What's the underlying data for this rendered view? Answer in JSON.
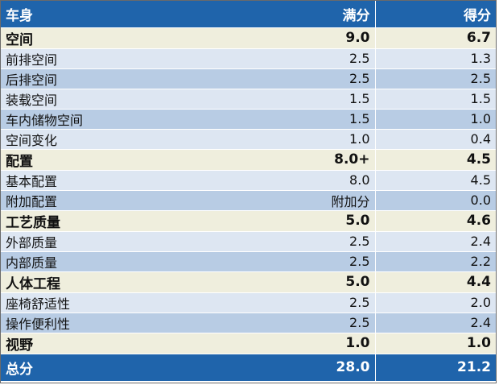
{
  "colors": {
    "header_bg": "#1f64ab",
    "footer_bg": "#1f64ab",
    "section_bg": "#efeedd",
    "row_light": "#dde6f2",
    "row_dark": "#b8cce4"
  },
  "header": {
    "col1": "车身",
    "col2": "满分",
    "col3": "得分"
  },
  "rows": [
    {
      "name": "空间",
      "full": "9.0",
      "score": "6.7",
      "kind": "section"
    },
    {
      "name": "前排空间",
      "full": "2.5",
      "score": "1.3",
      "kind": "light"
    },
    {
      "name": "后排空间",
      "full": "2.5",
      "score": "2.5",
      "kind": "dark"
    },
    {
      "name": "装载空间",
      "full": "1.5",
      "score": "1.5",
      "kind": "light"
    },
    {
      "name": "车内储物空间",
      "full": "1.5",
      "score": "1.0",
      "kind": "dark"
    },
    {
      "name": "空间变化",
      "full": "1.0",
      "score": "0.4",
      "kind": "light"
    },
    {
      "name": "配置",
      "full": "8.0+",
      "score": "4.5",
      "kind": "section"
    },
    {
      "name": "基本配置",
      "full": "8.0",
      "score": "4.5",
      "kind": "light"
    },
    {
      "name": "附加配置",
      "full": "附加分",
      "score": "0.0",
      "kind": "dark"
    },
    {
      "name": "工艺质量",
      "full": "5.0",
      "score": "4.6",
      "kind": "section"
    },
    {
      "name": "外部质量",
      "full": "2.5",
      "score": "2.4",
      "kind": "light"
    },
    {
      "name": "内部质量",
      "full": "2.5",
      "score": "2.2",
      "kind": "dark"
    },
    {
      "name": "人体工程",
      "full": "5.0",
      "score": "4.4",
      "kind": "section"
    },
    {
      "name": "座椅舒适性",
      "full": "2.5",
      "score": "2.0",
      "kind": "light"
    },
    {
      "name": "操作便利性",
      "full": "2.5",
      "score": "2.4",
      "kind": "dark"
    },
    {
      "name": "视野",
      "full": "1.0",
      "score": "1.0",
      "kind": "section"
    }
  ],
  "footer": {
    "col1": "总分",
    "col2": "28.0",
    "col3": "21.2"
  }
}
